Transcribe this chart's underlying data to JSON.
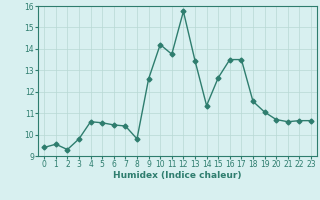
{
  "x": [
    0,
    1,
    2,
    3,
    4,
    5,
    6,
    7,
    8,
    9,
    10,
    11,
    12,
    13,
    14,
    15,
    16,
    17,
    18,
    19,
    20,
    21,
    22,
    23
  ],
  "y": [
    9.4,
    9.55,
    9.3,
    9.8,
    10.6,
    10.55,
    10.45,
    10.4,
    9.8,
    12.6,
    14.2,
    13.75,
    15.75,
    13.45,
    11.35,
    12.65,
    13.5,
    13.5,
    11.55,
    11.05,
    10.7,
    10.6,
    10.65,
    10.65
  ],
  "line_color": "#2e7d6e",
  "marker": "D",
  "markersize": 2.5,
  "linewidth": 1.0,
  "background_color": "#d8f0f0",
  "grid_color": "#b8d8d4",
  "xlabel": "Humidex (Indice chaleur)",
  "xlim": [
    -0.5,
    23.5
  ],
  "ylim": [
    9,
    16
  ],
  "yticks": [
    9,
    10,
    11,
    12,
    13,
    14,
    15,
    16
  ],
  "xticks": [
    0,
    1,
    2,
    3,
    4,
    5,
    6,
    7,
    8,
    9,
    10,
    11,
    12,
    13,
    14,
    15,
    16,
    17,
    18,
    19,
    20,
    21,
    22,
    23
  ],
  "xlabel_fontsize": 6.5,
  "tick_fontsize": 5.5
}
